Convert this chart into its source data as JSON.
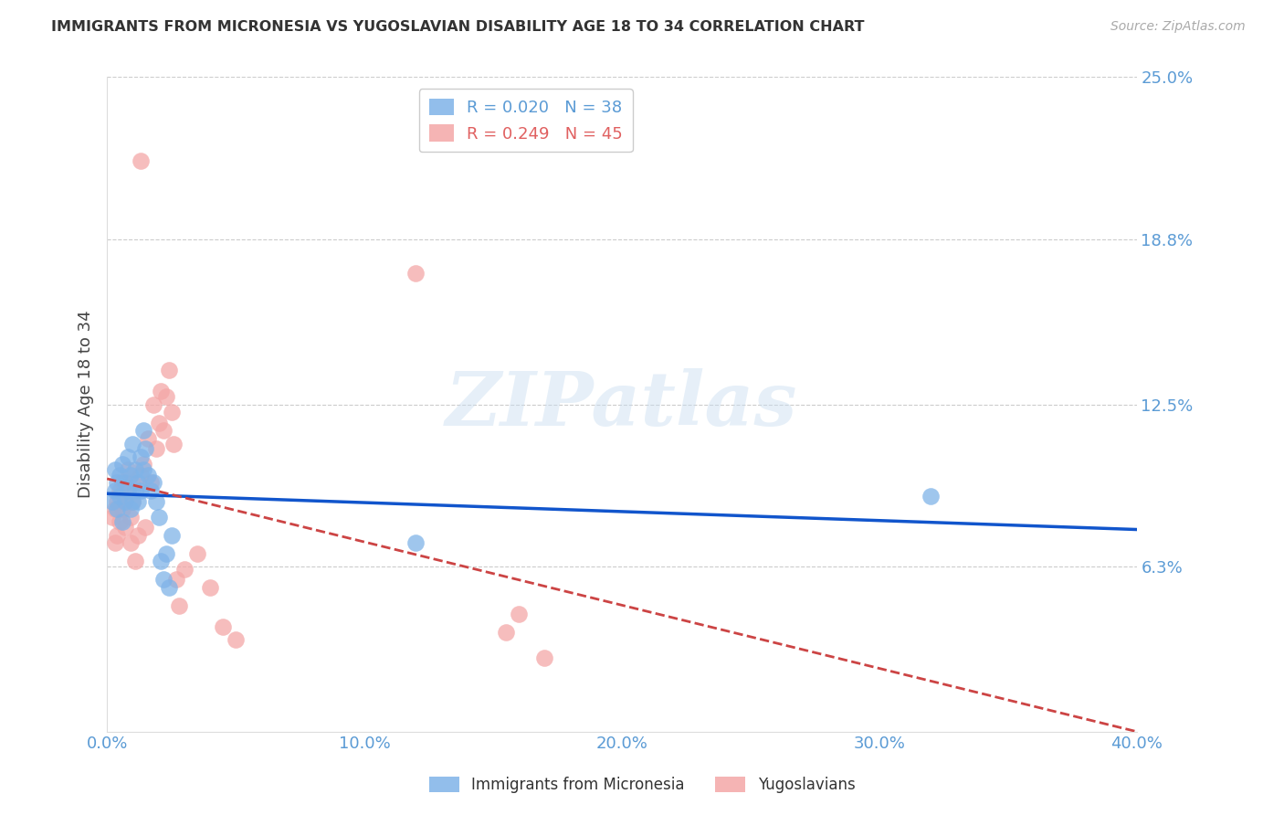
{
  "title": "IMMIGRANTS FROM MICRONESIA VS YUGOSLAVIAN DISABILITY AGE 18 TO 34 CORRELATION CHART",
  "source": "Source: ZipAtlas.com",
  "ylabel": "Disability Age 18 to 34",
  "xlim": [
    0.0,
    0.4
  ],
  "ylim": [
    0.0,
    0.25
  ],
  "yticks": [
    0.063,
    0.125,
    0.188,
    0.25
  ],
  "ytick_labels": [
    "6.3%",
    "12.5%",
    "18.8%",
    "25.0%"
  ],
  "xticks": [
    0.0,
    0.1,
    0.2,
    0.3,
    0.4
  ],
  "xtick_labels": [
    "0.0%",
    "10.0%",
    "20.0%",
    "30.0%",
    "40.0%"
  ],
  "micronesia_color": "#7fb3e8",
  "yugoslavian_color": "#f4a7a7",
  "micronesia_line_color": "#1155cc",
  "yugoslavian_line_color": "#cc4444",
  "watermark_text": "ZIPatlas",
  "micronesia_x": [
    0.002,
    0.003,
    0.003,
    0.004,
    0.004,
    0.005,
    0.005,
    0.006,
    0.006,
    0.007,
    0.007,
    0.008,
    0.008,
    0.009,
    0.009,
    0.01,
    0.01,
    0.011,
    0.011,
    0.012,
    0.012,
    0.013,
    0.013,
    0.014,
    0.014,
    0.015,
    0.016,
    0.017,
    0.018,
    0.019,
    0.02,
    0.021,
    0.022,
    0.023,
    0.024,
    0.025,
    0.12,
    0.32
  ],
  "micronesia_y": [
    0.088,
    0.092,
    0.1,
    0.085,
    0.095,
    0.09,
    0.098,
    0.08,
    0.102,
    0.088,
    0.095,
    0.092,
    0.105,
    0.085,
    0.098,
    0.11,
    0.088,
    0.092,
    0.1,
    0.095,
    0.088,
    0.105,
    0.092,
    0.1,
    0.115,
    0.108,
    0.098,
    0.092,
    0.095,
    0.088,
    0.082,
    0.065,
    0.058,
    0.068,
    0.055,
    0.075,
    0.072,
    0.09
  ],
  "yugoslavian_x": [
    0.002,
    0.003,
    0.003,
    0.004,
    0.004,
    0.005,
    0.005,
    0.006,
    0.006,
    0.007,
    0.007,
    0.008,
    0.008,
    0.009,
    0.009,
    0.01,
    0.01,
    0.011,
    0.012,
    0.013,
    0.013,
    0.014,
    0.015,
    0.016,
    0.017,
    0.018,
    0.019,
    0.02,
    0.021,
    0.022,
    0.023,
    0.024,
    0.025,
    0.026,
    0.027,
    0.028,
    0.03,
    0.035,
    0.04,
    0.045,
    0.05,
    0.12,
    0.155,
    0.16,
    0.17
  ],
  "yugoslavian_y": [
    0.082,
    0.085,
    0.072,
    0.075,
    0.088,
    0.08,
    0.092,
    0.085,
    0.095,
    0.088,
    0.078,
    0.092,
    0.1,
    0.082,
    0.072,
    0.088,
    0.095,
    0.065,
    0.075,
    0.098,
    0.218,
    0.102,
    0.078,
    0.112,
    0.095,
    0.125,
    0.108,
    0.118,
    0.13,
    0.115,
    0.128,
    0.138,
    0.122,
    0.11,
    0.058,
    0.048,
    0.062,
    0.068,
    0.055,
    0.04,
    0.035,
    0.175,
    0.038,
    0.045,
    0.028
  ]
}
